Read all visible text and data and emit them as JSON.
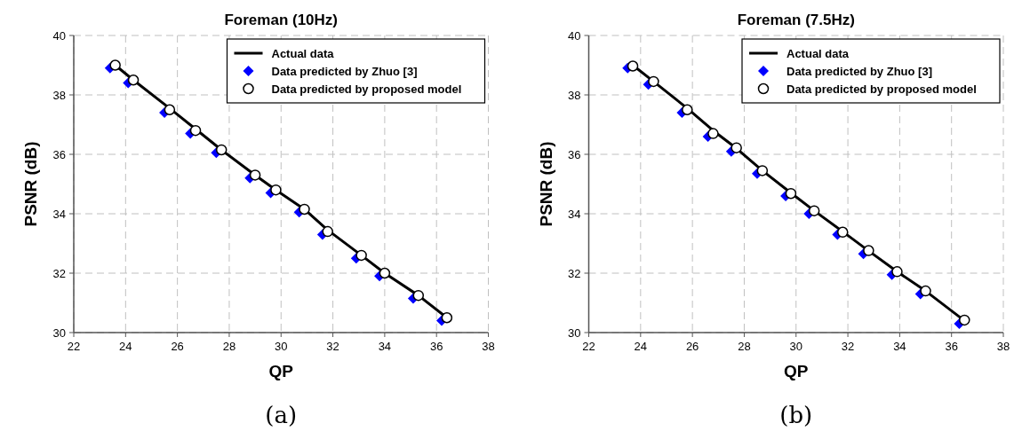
{
  "chart_data": [
    {
      "type": "line",
      "title": "Foreman (10Hz)",
      "xlabel": "QP",
      "ylabel": "PSNR (dB)",
      "xlim": [
        22,
        38
      ],
      "xticks": [
        22,
        24,
        26,
        28,
        30,
        32,
        34,
        36,
        38
      ],
      "ylim": [
        30,
        40
      ],
      "yticks": [
        30,
        32,
        34,
        36,
        38,
        40
      ],
      "grid": true,
      "legend": "top right",
      "annotations": [
        "(a)"
      ],
      "series": [
        {
          "name": "Actual data",
          "color": "#000000",
          "marker": "none",
          "line_style": "solid",
          "x": [
            23.6,
            24.3,
            25.7,
            26.7,
            27.7,
            29.0,
            29.8,
            30.9,
            31.8,
            33.1,
            34.0,
            35.3,
            36.4
          ],
          "values": [
            39.0,
            38.5,
            37.55,
            36.85,
            36.15,
            35.3,
            34.8,
            34.15,
            33.45,
            32.6,
            32.0,
            31.25,
            30.5
          ]
        },
        {
          "name": "Data predicted by Zhuo [3]",
          "type": "scatter",
          "color": "#0000ff",
          "marker": "diamond",
          "x": [
            23.4,
            24.1,
            25.5,
            26.5,
            27.5,
            28.8,
            29.6,
            30.7,
            31.6,
            32.9,
            33.8,
            35.1,
            36.2
          ],
          "values": [
            38.9,
            38.4,
            37.4,
            36.7,
            36.05,
            35.2,
            34.7,
            34.05,
            33.3,
            32.5,
            31.9,
            31.15,
            30.4
          ]
        },
        {
          "name": "Data predicted by proposed model",
          "type": "scatter",
          "color": "#ffffff",
          "marker": "circle",
          "x": [
            23.6,
            24.3,
            25.7,
            26.7,
            27.7,
            29.0,
            29.8,
            30.9,
            31.8,
            33.1,
            34.0,
            35.3,
            36.4
          ],
          "values": [
            39.0,
            38.5,
            37.5,
            36.8,
            36.15,
            35.3,
            34.8,
            34.15,
            33.4,
            32.6,
            32.0,
            31.25,
            30.5
          ]
        }
      ]
    },
    {
      "type": "line",
      "title": "Foreman (7.5Hz)",
      "xlabel": "QP",
      "ylabel": "PSNR (dB)",
      "xlim": [
        22,
        38
      ],
      "xticks": [
        22,
        24,
        26,
        28,
        30,
        32,
        34,
        36,
        38
      ],
      "ylim": [
        30,
        40
      ],
      "yticks": [
        30,
        32,
        34,
        36,
        38,
        40
      ],
      "grid": true,
      "legend": "top right",
      "annotations": [
        "(b)"
      ],
      "series": [
        {
          "name": "Actual data",
          "color": "#000000",
          "marker": "none",
          "line_style": "solid",
          "x": [
            23.7,
            24.5,
            25.8,
            26.8,
            27.7,
            28.7,
            29.8,
            30.7,
            31.8,
            32.8,
            33.9,
            35.0,
            36.5
          ],
          "values": [
            39.0,
            38.45,
            37.55,
            36.8,
            36.2,
            35.45,
            34.7,
            34.1,
            33.4,
            32.75,
            32.05,
            31.4,
            30.4
          ]
        },
        {
          "name": "Data predicted by Zhuo [3]",
          "type": "scatter",
          "color": "#0000ff",
          "marker": "diamond",
          "x": [
            23.5,
            24.3,
            25.6,
            26.6,
            27.5,
            28.5,
            29.6,
            30.5,
            31.6,
            32.6,
            33.7,
            34.8,
            36.3
          ],
          "values": [
            38.9,
            38.35,
            37.4,
            36.6,
            36.1,
            35.35,
            34.6,
            34.0,
            33.3,
            32.65,
            31.95,
            31.3,
            30.3
          ]
        },
        {
          "name": "Data predicted by proposed model",
          "type": "scatter",
          "color": "#ffffff",
          "marker": "circle",
          "x": [
            23.7,
            24.5,
            25.8,
            26.8,
            27.7,
            28.7,
            29.8,
            30.7,
            31.8,
            32.8,
            33.9,
            35.0,
            36.5
          ],
          "values": [
            38.97,
            38.45,
            37.5,
            36.7,
            36.22,
            35.45,
            34.68,
            34.1,
            33.38,
            32.76,
            32.05,
            31.4,
            30.42
          ]
        }
      ]
    }
  ]
}
